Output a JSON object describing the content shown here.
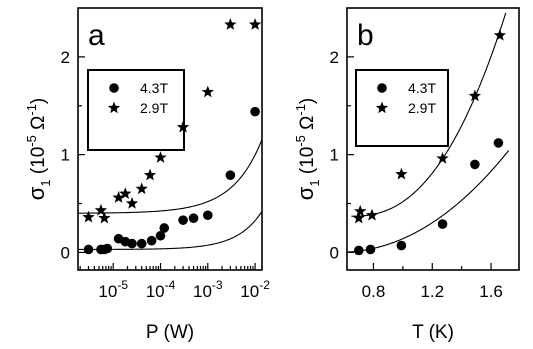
{
  "chart_data": [
    {
      "type": "scatter",
      "panel_label": "a",
      "xlabel": "P (W)",
      "ylabel_main": "σ",
      "ylabel_sub": "1",
      "ylabel_units": "(10",
      "ylabel_exp": "-5",
      "ylabel_omega": " Ω",
      "ylabel_omega_exp": "-1",
      "ylabel_close": ")",
      "x_scale": "log",
      "xlim": [
        1.8e-06,
        0.014
      ],
      "ylim": [
        -0.18,
        2.5
      ],
      "x_ticks": [
        {
          "value": 1e-05,
          "base": "10",
          "exp": "-5"
        },
        {
          "value": 0.0001,
          "base": "10",
          "exp": "-4"
        },
        {
          "value": 0.001,
          "base": "10",
          "exp": "-3"
        },
        {
          "value": 0.01,
          "base": "10",
          "exp": "-2"
        }
      ],
      "y_ticks": [
        {
          "value": 0,
          "label": "0"
        },
        {
          "value": 1,
          "label": "1"
        },
        {
          "value": 2,
          "label": "2"
        }
      ],
      "legend": {
        "position": "upper-left",
        "entries": [
          {
            "marker": "circle",
            "label": "4.3T"
          },
          {
            "marker": "star",
            "label": "2.9T"
          }
        ]
      },
      "series": [
        {
          "name": "4.3T",
          "marker": "circle",
          "x": [
            3e-06,
            5.5e-06,
            6.5e-06,
            7.5e-06,
            1.3e-05,
            1.8e-05,
            2.5e-05,
            4e-05,
            6.5e-05,
            0.0001,
            0.00012,
            0.0003,
            0.0005,
            0.001,
            0.003,
            0.01
          ],
          "y": [
            0.03,
            0.03,
            0.03,
            0.04,
            0.14,
            0.11,
            0.09,
            0.09,
            0.12,
            0.17,
            0.25,
            0.33,
            0.35,
            0.38,
            0.79,
            1.44
          ]
        },
        {
          "name": "2.9T",
          "marker": "star",
          "x": [
            3e-06,
            5.5e-06,
            6.5e-06,
            1.3e-05,
            1.8e-05,
            2.5e-05,
            4e-05,
            6e-05,
            0.0001,
            0.0003,
            0.001,
            0.003,
            0.01
          ],
          "y": [
            0.36,
            0.43,
            0.35,
            0.56,
            0.6,
            0.5,
            0.65,
            0.79,
            0.97,
            1.28,
            1.64,
            2.33,
            2.33
          ]
        }
      ],
      "fits": [
        {
          "series": "4.3T",
          "form": "y = y0 + A·x^n",
          "y0": 0.03,
          "A": 13.5,
          "n": 0.83
        },
        {
          "series": "2.9T",
          "form": "y = y0 + A·x^n",
          "y0": 0.4,
          "A": 15.0,
          "n": 0.7
        }
      ]
    },
    {
      "type": "scatter",
      "panel_label": "b",
      "xlabel": "T (K)",
      "ylabel_main": "σ",
      "ylabel_sub": "1",
      "ylabel_units": "(10",
      "ylabel_exp": "-5",
      "ylabel_omega": " Ω",
      "ylabel_omega_exp": "-1",
      "ylabel_close": ")",
      "x_scale": "linear",
      "xlim": [
        0.62,
        1.79
      ],
      "ylim": [
        -0.18,
        2.5
      ],
      "x_ticks": [
        {
          "value": 0.8,
          "label": "0.8"
        },
        {
          "value": 1.2,
          "label": "1.2"
        },
        {
          "value": 1.6,
          "label": "1.6"
        }
      ],
      "y_ticks": [
        {
          "value": 0,
          "label": "0"
        },
        {
          "value": 1,
          "label": "1"
        },
        {
          "value": 2,
          "label": "2"
        }
      ],
      "legend": {
        "position": "upper-left",
        "entries": [
          {
            "marker": "circle",
            "label": "4.3T"
          },
          {
            "marker": "star",
            "label": "2.9T"
          }
        ]
      },
      "series": [
        {
          "name": "4.3T",
          "marker": "circle",
          "x": [
            0.7,
            0.78,
            0.99,
            1.27,
            1.49,
            1.65
          ],
          "y": [
            0.02,
            0.03,
            0.07,
            0.29,
            0.9,
            1.12
          ]
        },
        {
          "name": "2.9T",
          "marker": "star",
          "x": [
            0.7,
            0.71,
            0.79,
            0.99,
            1.27,
            1.49,
            1.66
          ],
          "y": [
            0.35,
            0.42,
            0.38,
            0.8,
            0.96,
            1.6,
            2.22
          ]
        }
      ],
      "fits": [
        {
          "series": "4.3T",
          "form": "y = A·(x - x0)^n",
          "x0": 0.55,
          "A": 0.75,
          "n": 2.1,
          "x_max": 1.72
        },
        {
          "series": "2.9T",
          "form": "y = y0 + A·(x - x0)^n",
          "y0": 0.37,
          "x0": 0.65,
          "A": 1.85,
          "n": 2.4,
          "x_max": 1.7
        }
      ]
    }
  ]
}
